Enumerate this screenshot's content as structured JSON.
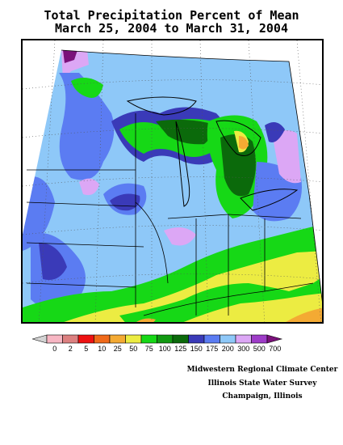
{
  "title": {
    "line1": "Total Precipitation Percent of Mean",
    "line2": "March 25, 2004 to March 31, 2004"
  },
  "legend": {
    "labels": [
      "0",
      "2",
      "5",
      "10",
      "25",
      "50",
      "75",
      "100",
      "125",
      "150",
      "175",
      "200",
      "300",
      "500",
      "700"
    ],
    "colors": [
      "#d3d3d3",
      "#f7b6c3",
      "#dc8080",
      "#ee1111",
      "#f06a1a",
      "#f4aa33",
      "#ecec42",
      "#16d816",
      "#119911",
      "#0b6a0b",
      "#3a3ab8",
      "#5b7cf2",
      "#8ec8f8",
      "#dca7f5",
      "#9e3cc8",
      "#7a117a"
    ]
  },
  "credits": {
    "line1": "Midwestern Regional Climate Center",
    "line2": "Illinois State Water Survey",
    "line3": "Champaign, Illinois"
  },
  "colors": {
    "very_light_blue": "#8ec8f8",
    "blue": "#5b7cf2",
    "dark_blue": "#3a3ab8",
    "green": "#16d816",
    "dark_green": "#0b6a0b",
    "yellow": "#ecec42",
    "orange": "#f4aa33",
    "lilac": "#dca7f5",
    "purple": "#9e3cc8"
  }
}
